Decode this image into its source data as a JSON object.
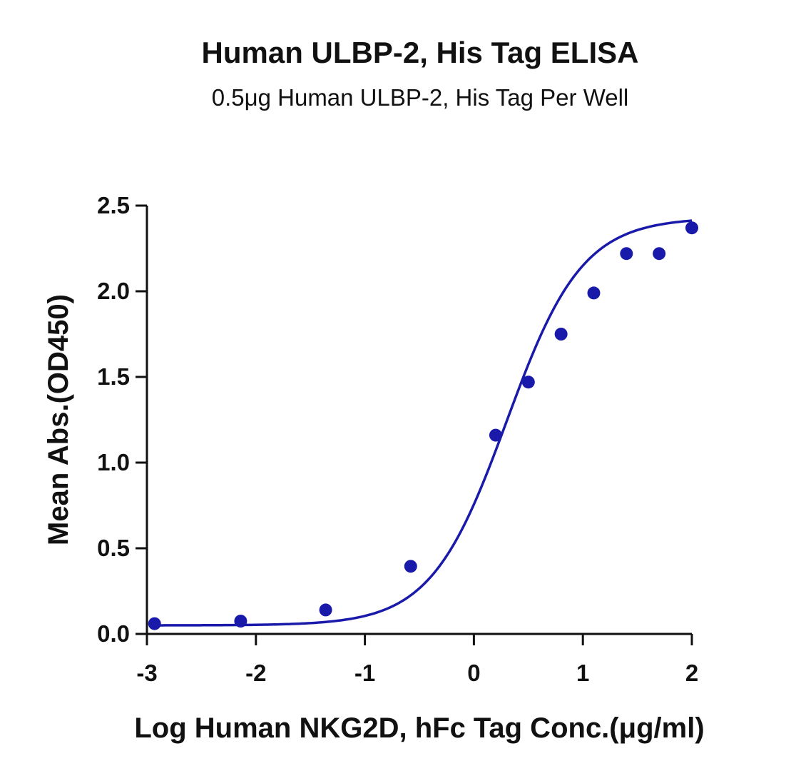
{
  "chart_data": {
    "type": "scatter",
    "title": "Human ULBP-2, His Tag ELISA",
    "subtitle": "0.5μg Human ULBP-2, His Tag Per Well",
    "xlabel": "Log Human NKG2D, hFc Tag Conc.(μg/ml)",
    "ylabel": "Mean Abs.(OD450)",
    "xlim": [
      -3,
      2
    ],
    "ylim": [
      0,
      2.5
    ],
    "xticks": [
      -3,
      -2,
      -1,
      0,
      1,
      2
    ],
    "xtick_labels": [
      "-3",
      "-2",
      "-1",
      "0",
      "1",
      "2"
    ],
    "yticks": [
      0,
      0.5,
      1.0,
      1.5,
      2.0,
      2.5
    ],
    "ytick_labels": [
      "0.0",
      "0.5",
      "1.0",
      "1.5",
      "2.0",
      "2.5"
    ],
    "grid": false,
    "series": [
      {
        "color": "#1a1aaa",
        "points": [
          {
            "x": -2.93,
            "y": 0.06
          },
          {
            "x": -2.14,
            "y": 0.075
          },
          {
            "x": -1.36,
            "y": 0.14
          },
          {
            "x": -0.58,
            "y": 0.395
          },
          {
            "x": 0.2,
            "y": 1.16
          },
          {
            "x": 0.5,
            "y": 1.47
          },
          {
            "x": 0.8,
            "y": 1.75
          },
          {
            "x": 1.1,
            "y": 1.99
          },
          {
            "x": 1.4,
            "y": 2.22
          },
          {
            "x": 1.7,
            "y": 2.22
          },
          {
            "x": 2.0,
            "y": 2.37
          }
        ],
        "fit": {
          "model": "4PL",
          "bottom": 0.05,
          "top": 2.43,
          "logEC50": 0.3,
          "hill": 1.25,
          "x_range": [
            -2.93,
            2.0
          ]
        }
      }
    ]
  }
}
